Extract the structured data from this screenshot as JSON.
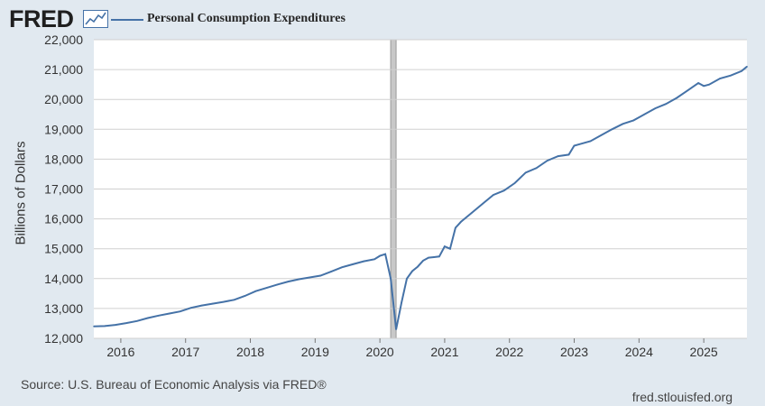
{
  "header": {
    "logo_text": "FRED",
    "logo_icon": "trend-line-icon",
    "legend_label": "Personal Consumption Expenditures"
  },
  "colors": {
    "background": "#e1e9f0",
    "plot_background": "#ffffff",
    "series_line": "#4572a7",
    "recession_band": "#c8c8c8",
    "grid": "#d0d0d0"
  },
  "footer": {
    "source": "Source: U.S. Bureau of Economic Analysis via FRED®",
    "site": "fred.stlouisfed.org"
  },
  "chart_data": {
    "type": "line",
    "title": "",
    "xlabel": "",
    "ylabel": "Billions of Dollars",
    "ylim": [
      12000,
      22000
    ],
    "xlim": [
      "2015-08",
      "2025-09"
    ],
    "yticks": [
      12000,
      13000,
      14000,
      15000,
      16000,
      17000,
      18000,
      19000,
      20000,
      21000,
      22000
    ],
    "ytick_labels": [
      "12,000",
      "13,000",
      "14,000",
      "15,000",
      "16,000",
      "17,000",
      "18,000",
      "19,000",
      "20,000",
      "21,000",
      "22,000"
    ],
    "xtick_labels": [
      "2016",
      "2017",
      "2018",
      "2019",
      "2020",
      "2021",
      "2022",
      "2023",
      "2024",
      "2025"
    ],
    "grid": true,
    "legend_position": "top-left",
    "recessions": [
      {
        "start": "2020-03",
        "end": "2020-04"
      }
    ],
    "series": [
      {
        "name": "Personal Consumption Expenditures",
        "x": [
          "2015-08",
          "2015-10",
          "2015-12",
          "2016-02",
          "2016-04",
          "2016-06",
          "2016-08",
          "2016-10",
          "2016-12",
          "2017-02",
          "2017-04",
          "2017-06",
          "2017-08",
          "2017-10",
          "2017-12",
          "2018-02",
          "2018-04",
          "2018-06",
          "2018-08",
          "2018-10",
          "2018-12",
          "2019-02",
          "2019-04",
          "2019-06",
          "2019-08",
          "2019-10",
          "2019-12",
          "2020-01",
          "2020-02",
          "2020-03",
          "2020-04",
          "2020-05",
          "2020-06",
          "2020-07",
          "2020-08",
          "2020-09",
          "2020-10",
          "2020-11",
          "2020-12",
          "2021-01",
          "2021-02",
          "2021-03",
          "2021-04",
          "2021-06",
          "2021-08",
          "2021-10",
          "2021-12",
          "2022-02",
          "2022-04",
          "2022-06",
          "2022-08",
          "2022-10",
          "2022-12",
          "2023-01",
          "2023-02",
          "2023-04",
          "2023-06",
          "2023-08",
          "2023-10",
          "2023-12",
          "2024-02",
          "2024-04",
          "2024-06",
          "2024-08",
          "2024-10",
          "2024-12",
          "2025-01",
          "2025-02",
          "2025-04",
          "2025-06",
          "2025-08",
          "2025-09"
        ],
        "values": [
          12400,
          12410,
          12450,
          12510,
          12580,
          12680,
          12760,
          12830,
          12900,
          13020,
          13100,
          13160,
          13220,
          13290,
          13420,
          13580,
          13690,
          13800,
          13900,
          13980,
          14040,
          14100,
          14240,
          14380,
          14480,
          14580,
          14650,
          14760,
          14820,
          14000,
          12300,
          13200,
          14000,
          14250,
          14400,
          14600,
          14700,
          14720,
          14740,
          15080,
          15000,
          15700,
          15900,
          16200,
          16500,
          16800,
          16950,
          17200,
          17550,
          17700,
          17950,
          18100,
          18150,
          18450,
          18500,
          18600,
          18800,
          19000,
          19180,
          19300,
          19500,
          19700,
          19850,
          20050,
          20300,
          20550,
          20450,
          20500,
          20700,
          20800,
          20950,
          21100
        ]
      }
    ]
  }
}
